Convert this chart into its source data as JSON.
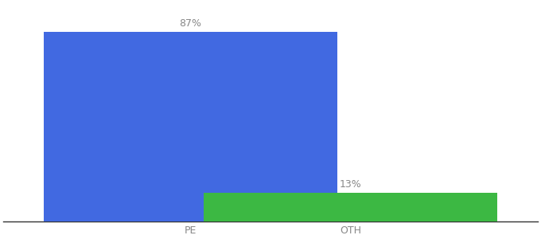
{
  "categories": [
    "PE",
    "OTH"
  ],
  "values": [
    87,
    13
  ],
  "bar_colors": [
    "#4169e1",
    "#3cb843"
  ],
  "bar_labels": [
    "87%",
    "13%"
  ],
  "ylim": [
    0,
    100
  ],
  "background_color": "#ffffff",
  "label_fontsize": 9,
  "tick_fontsize": 9,
  "bar_width": 0.55,
  "x_positions": [
    0.35,
    0.65
  ],
  "xlim": [
    0.0,
    1.0
  ]
}
